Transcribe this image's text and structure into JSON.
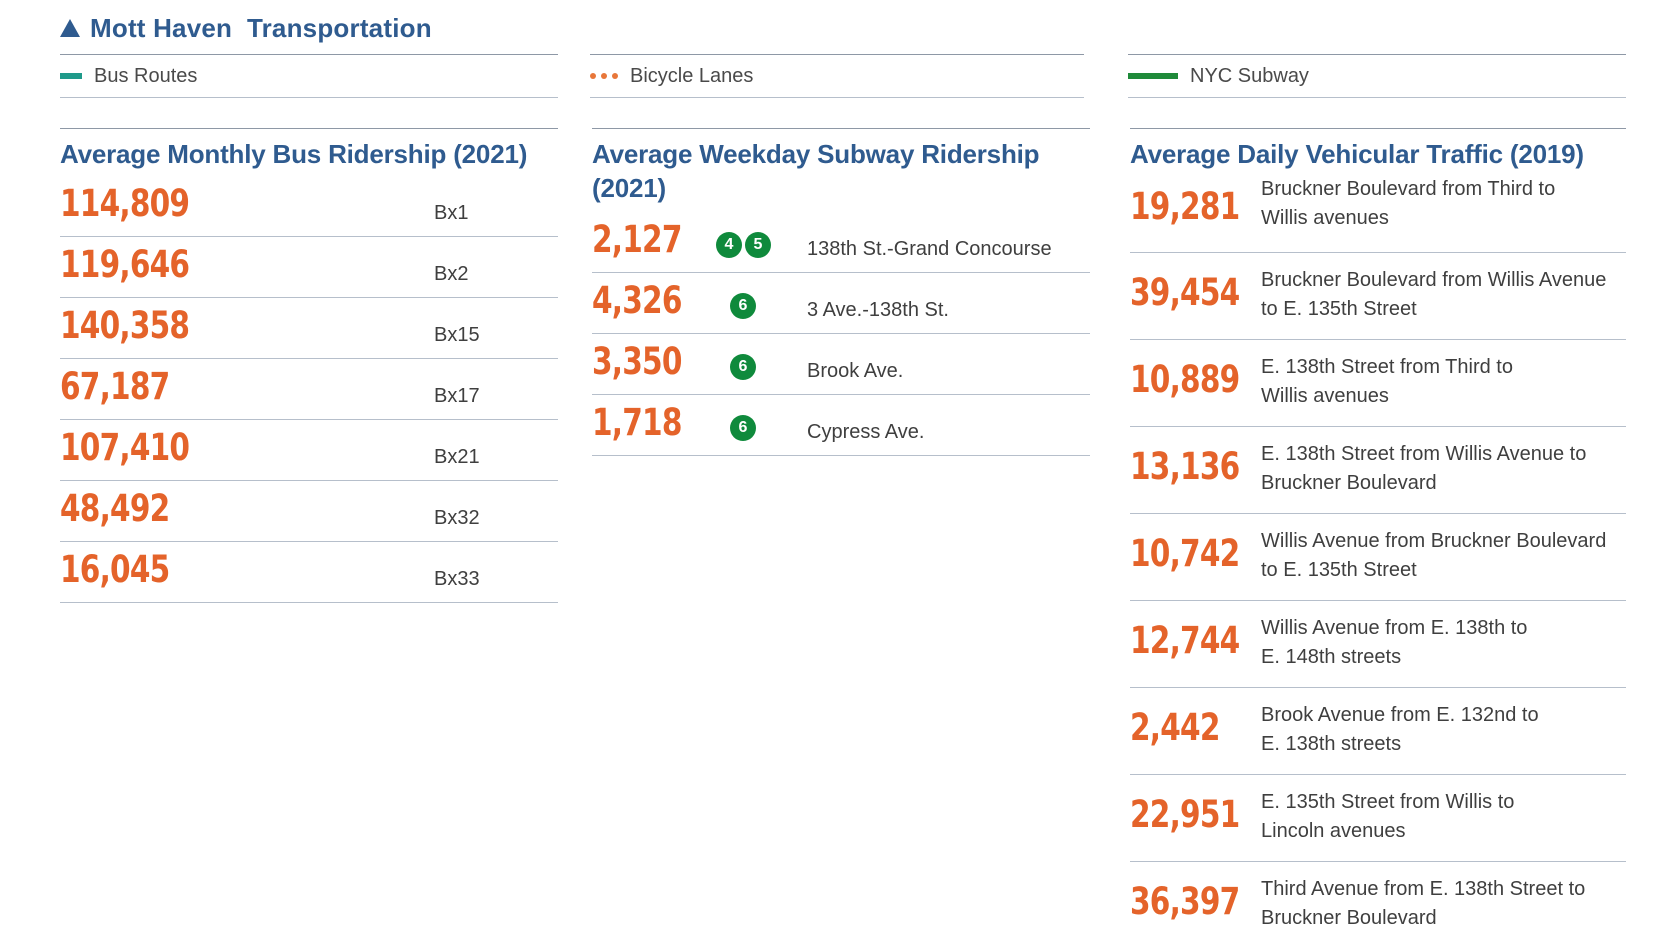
{
  "title": "Mott Haven  Transportation",
  "legend": {
    "bus": "Bus Routes",
    "bike": "Bicycle Lanes",
    "subway": "NYC Subway"
  },
  "colors": {
    "accent_blue": "#2f5b8f",
    "number_orange": "#e4632a",
    "bus_teal": "#1f9a8a",
    "subway_green": "#0f8a3c"
  },
  "bus": {
    "heading": "Average Monthly Bus Ridership (2021)",
    "rows": [
      {
        "value": "114,809",
        "route": "Bx1"
      },
      {
        "value": "119,646",
        "route": "Bx2"
      },
      {
        "value": "140,358",
        "route": "Bx15"
      },
      {
        "value": "67,187",
        "route": "Bx17"
      },
      {
        "value": "107,410",
        "route": "Bx21"
      },
      {
        "value": "48,492",
        "route": "Bx32"
      },
      {
        "value": "16,045",
        "route": "Bx33"
      }
    ]
  },
  "subway": {
    "heading": "Average Weekday Subway Ridership (2021)",
    "rows": [
      {
        "value": "2,127",
        "lines": [
          "4",
          "5"
        ],
        "station": "138th St.-Grand Concourse"
      },
      {
        "value": "4,326",
        "lines": [
          "6"
        ],
        "station": "3 Ave.-138th St."
      },
      {
        "value": "3,350",
        "lines": [
          "6"
        ],
        "station": "Brook Ave."
      },
      {
        "value": "1,718",
        "lines": [
          "6"
        ],
        "station": "Cypress Ave."
      }
    ]
  },
  "traffic": {
    "heading": "Average Daily Vehicular Traffic (2019)",
    "rows": [
      {
        "value": "19,281",
        "desc_1": "Bruckner Boulevard from Third to",
        "desc_2": "Willis avenues"
      },
      {
        "value": "39,454",
        "desc_1": "Bruckner Boulevard from Willis Avenue",
        "desc_2": "to E. 135th Street"
      },
      {
        "value": "10,889",
        "desc_1": "E. 138th Street from Third to",
        "desc_2": "Willis avenues"
      },
      {
        "value": "13,136",
        "desc_1": "E. 138th Street from Willis Avenue to",
        "desc_2": "Bruckner Boulevard"
      },
      {
        "value": "10,742",
        "desc_1": "Willis Avenue from Bruckner Boulevard",
        "desc_2": "to E. 135th Street"
      },
      {
        "value": "12,744",
        "desc_1": "Willis Avenue from E. 138th to",
        "desc_2": "E. 148th streets"
      },
      {
        "value": "2,442",
        "desc_1": "Brook Avenue from E. 132nd to",
        "desc_2": "E. 138th streets"
      },
      {
        "value": "22,951",
        "desc_1": "E. 135th Street from Willis to",
        "desc_2": "Lincoln avenues"
      },
      {
        "value": "36,397",
        "desc_1": "Third Avenue from E. 138th Street to",
        "desc_2": "Bruckner Boulevard"
      }
    ]
  }
}
